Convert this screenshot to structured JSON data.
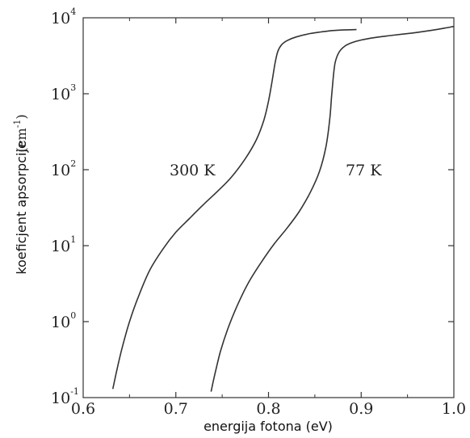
{
  "chart_data": {
    "type": "line",
    "xlabel": "energija fotona (eV)",
    "ylabel": "koeficjent apsorpcije",
    "ylabel_unit": "(cm",
    "ylabel_unit_exp": "-1",
    "ylabel_unit_close": ")",
    "xlim": [
      0.6,
      1.0
    ],
    "ylim": [
      0.1,
      10000
    ],
    "yscale": "log",
    "x_ticks": [
      "0.6",
      "0.7",
      "0.8",
      "0.9",
      "1.0"
    ],
    "y_ticks": [
      {
        "base": "10",
        "exp": "-1",
        "value": 0.1
      },
      {
        "base": "10",
        "exp": "0",
        "value": 1
      },
      {
        "base": "10",
        "exp": "1",
        "value": 10
      },
      {
        "base": "10",
        "exp": "2",
        "value": 100
      },
      {
        "base": "10",
        "exp": "3",
        "value": 1000
      },
      {
        "base": "10",
        "exp": "4",
        "value": 10000
      }
    ],
    "grid": false,
    "legend": "none",
    "series": [
      {
        "label": "300 K",
        "color": "#333333",
        "x": [
          0.632,
          0.636,
          0.642,
          0.65,
          0.66,
          0.672,
          0.686,
          0.7,
          0.715,
          0.73,
          0.745,
          0.76,
          0.775,
          0.787,
          0.795,
          0.8,
          0.804,
          0.807,
          0.81,
          0.814,
          0.82,
          0.83,
          0.845,
          0.865,
          0.88,
          0.895
        ],
        "y": [
          0.13,
          0.22,
          0.45,
          1.0,
          2.2,
          4.8,
          9.0,
          15.0,
          23.0,
          35.0,
          52.0,
          80.0,
          140.0,
          250.0,
          450.0,
          800.0,
          1500.0,
          2500.0,
          3600.0,
          4400.0,
          5000.0,
          5600.0,
          6200.0,
          6700.0,
          6900.0,
          7000.0
        ]
      },
      {
        "label": "77 K",
        "color": "#333333",
        "x": [
          0.738,
          0.742,
          0.748,
          0.756,
          0.766,
          0.778,
          0.792,
          0.806,
          0.82,
          0.833,
          0.845,
          0.855,
          0.862,
          0.866,
          0.868,
          0.87,
          0.872,
          0.876,
          0.882,
          0.89,
          0.9,
          0.915,
          0.935,
          0.955,
          0.975,
          0.99,
          1.0
        ],
        "y": [
          0.12,
          0.2,
          0.4,
          0.8,
          1.6,
          3.2,
          6.0,
          10.5,
          17.0,
          28.0,
          50.0,
          95.0,
          200.0,
          450.0,
          900.0,
          1700.0,
          2600.0,
          3500.0,
          4200.0,
          4700.0,
          5100.0,
          5500.0,
          5900.0,
          6300.0,
          6800.0,
          7300.0,
          7700.0
        ]
      }
    ]
  }
}
